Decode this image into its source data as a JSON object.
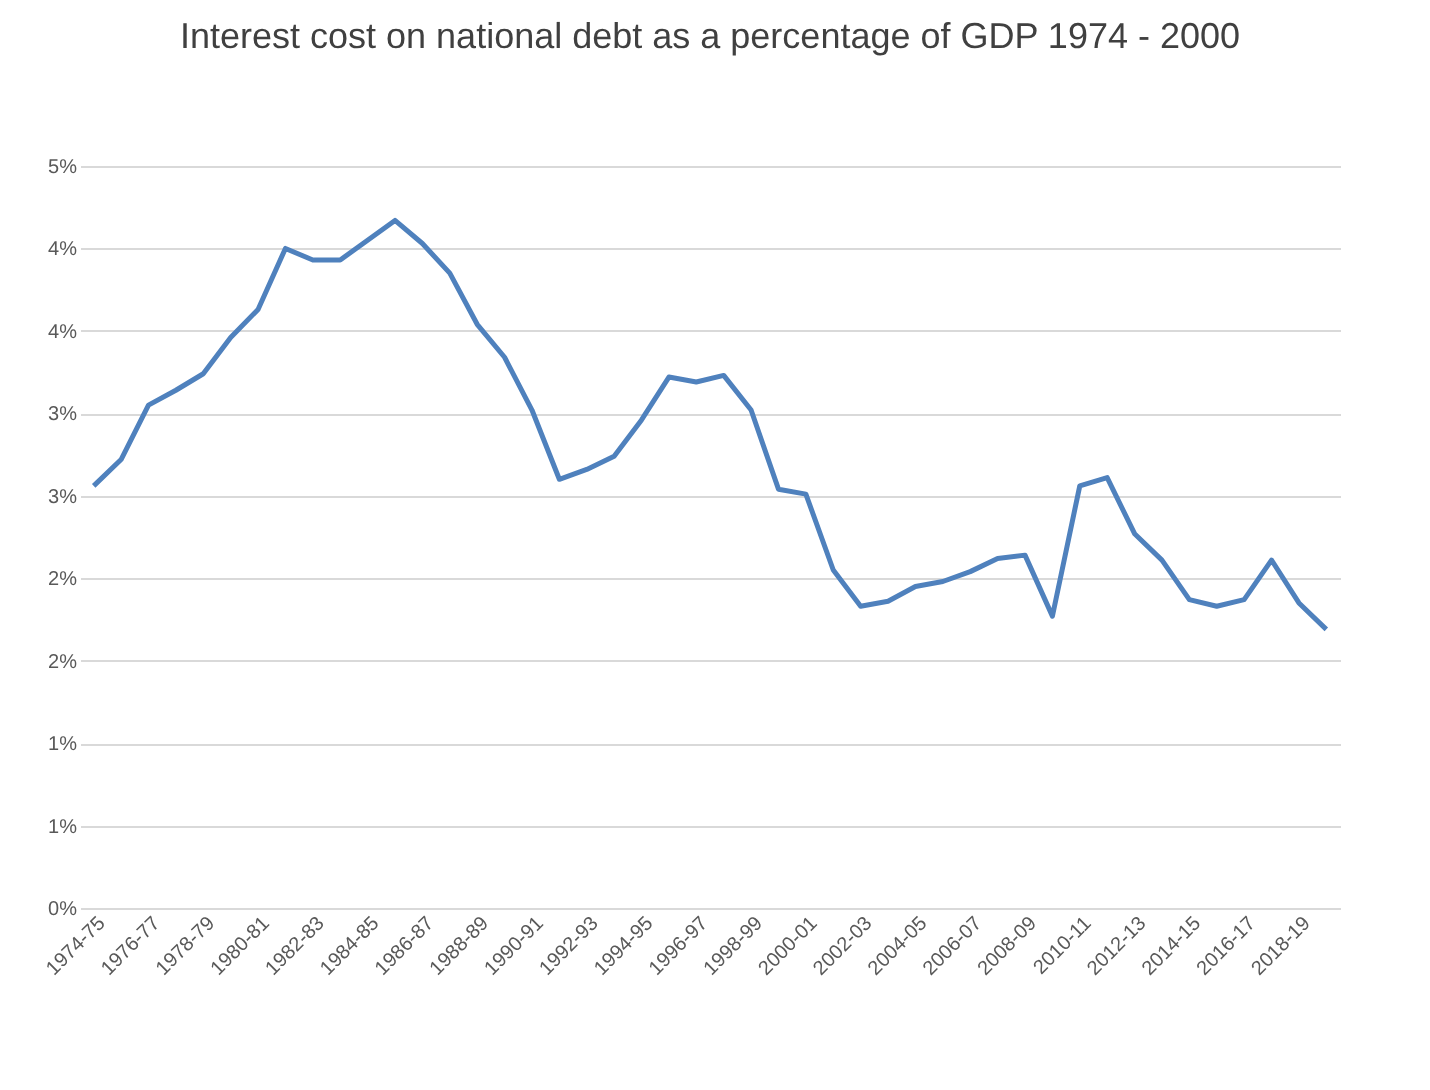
{
  "chart_data": {
    "type": "line",
    "title": "Interest cost on national debt as a percentage of GDP 1974 - 2000",
    "categories": [
      "1974-75",
      null,
      "1976-77",
      null,
      "1978-79",
      null,
      "1980-81",
      null,
      "1982-83",
      null,
      "1984-85",
      null,
      "1986-87",
      null,
      "1988-89",
      null,
      "1990-91",
      null,
      "1992-93",
      null,
      "1994-95",
      null,
      "1996-97",
      null,
      "1998-99",
      null,
      "2000-01",
      null,
      "2002-03",
      null,
      "2004-05",
      null,
      "2006-07",
      null,
      "2008-09",
      null,
      "2010-11",
      null,
      "2012-13",
      null,
      "2014-15",
      null,
      "2016-17",
      null,
      "2018-19",
      null
    ],
    "series": [
      {
        "color": "#4f81bd",
        "values": [
          2.56,
          2.72,
          3.05,
          3.14,
          3.24,
          3.46,
          3.63,
          4.0,
          3.93,
          3.93,
          4.05,
          4.17,
          4.03,
          3.85,
          3.54,
          3.34,
          3.02,
          2.6,
          2.66,
          2.74,
          2.96,
          3.22,
          3.19,
          3.23,
          3.02,
          2.54,
          2.51,
          2.05,
          1.83,
          1.86,
          1.95,
          1.98,
          2.04,
          2.12,
          2.14,
          1.77,
          2.56,
          2.61,
          2.27,
          2.11,
          1.87,
          1.83,
          1.87,
          2.11,
          1.85,
          1.69
        ]
      }
    ],
    "ylim": [
      0,
      4.5
    ],
    "yticks": [
      {
        "value": 0,
        "label": "0%"
      },
      {
        "value": 0.5,
        "label": "1%"
      },
      {
        "value": 1,
        "label": "1%"
      },
      {
        "value": 1.5,
        "label": "2%"
      },
      {
        "value": 2,
        "label": "2%"
      },
      {
        "value": 2.5,
        "label": "3%"
      },
      {
        "value": 3,
        "label": "3%"
      },
      {
        "value": 3.5,
        "label": "4%"
      },
      {
        "value": 4,
        "label": "4%"
      },
      {
        "value": 4.5,
        "label": "5%"
      }
    ],
    "grid": "y",
    "marker": "none",
    "line_style": "solid"
  }
}
